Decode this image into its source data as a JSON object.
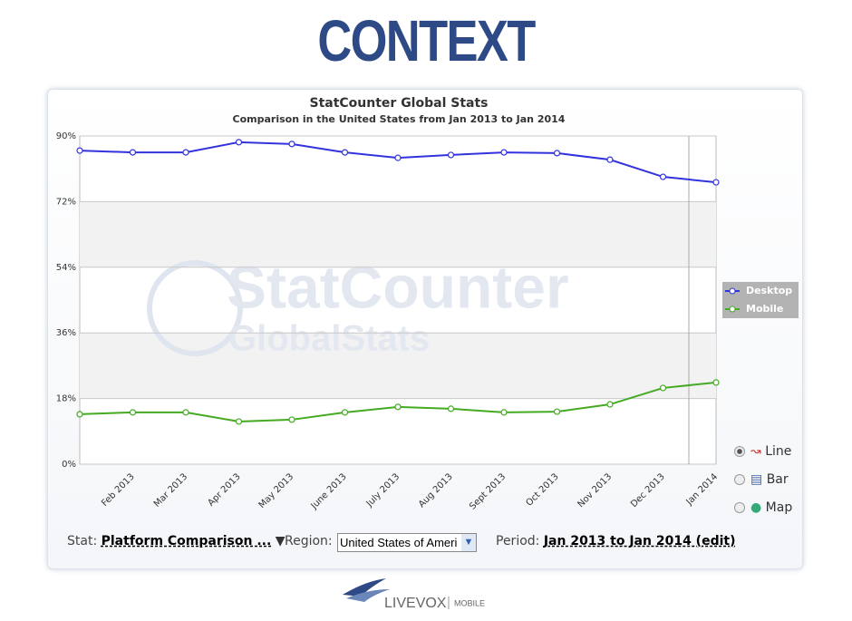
{
  "header": {
    "title": "CONTEXT"
  },
  "watermark": [
    "StatCounter",
    "GlobalStats"
  ],
  "chart_data": {
    "type": "line",
    "title": "StatCounter Global Stats",
    "subtitle": "Comparison in the United States from Jan 2013 to Jan 2014",
    "categories": [
      null,
      "Feb 2013",
      "Mar 2013",
      "Apr 2013",
      "May 2013",
      "June 2013",
      "July 2013",
      "Aug 2013",
      "Sept 2013",
      "Oct 2013",
      "Nov 2013",
      "Dec 2013",
      "Jan 2014"
    ],
    "series": [
      {
        "name": "Desktop",
        "color": "#3333dd",
        "values": [
          86.0,
          85.5,
          85.5,
          88.3,
          87.8,
          85.5,
          84.0,
          84.8,
          85.5,
          85.3,
          83.5,
          78.8,
          77.3
        ]
      },
      {
        "name": "Mobile",
        "color": "#44aa22",
        "values": [
          13.7,
          14.2,
          14.2,
          11.7,
          12.2,
          14.2,
          15.7,
          15.2,
          14.2,
          14.4,
          16.4,
          20.9,
          22.4
        ]
      }
    ],
    "ylim": [
      0,
      90
    ],
    "yticks": [
      {
        "value": 0,
        "label": "0%"
      },
      {
        "value": 18,
        "label": "18%"
      },
      {
        "value": 36,
        "label": "36%"
      },
      {
        "value": 54,
        "label": "54%"
      },
      {
        "value": 72,
        "label": "72%"
      },
      {
        "value": 90,
        "label": "90%"
      }
    ],
    "grid": true,
    "legend": "right"
  },
  "controls": {
    "stat_label": "Stat:",
    "stat_value": "Platform Comparison ...",
    "region_label": "Region:",
    "region_value": "United States of Ameri",
    "period_label": "Period:",
    "period_value": "Jan 2013 to Jan 2014 (edit)",
    "chart_types": [
      "Line",
      "Bar",
      "Map"
    ]
  },
  "footer": {
    "brand": "LIVEVOX",
    "sub": "MOBILE"
  }
}
